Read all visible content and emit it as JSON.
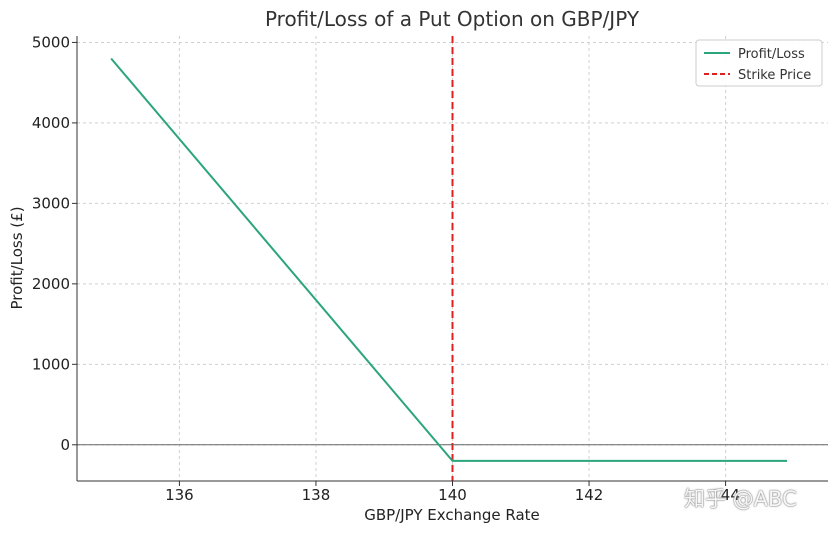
{
  "chart_data": {
    "type": "line",
    "title": "Profit/Loss of a Put Option on GBP/JPY",
    "xlabel": "GBP/JPY Exchange Rate",
    "ylabel": "Profit/Loss (£)",
    "xlim": [
      134.5,
      145.5
    ],
    "ylim": [
      -450,
      5080
    ],
    "xticks": [
      136,
      138,
      140,
      142,
      144
    ],
    "yticks": [
      0,
      1000,
      2000,
      3000,
      4000,
      5000
    ],
    "grid": true,
    "legend_position": "top-right",
    "series": [
      {
        "name": "Profit/Loss",
        "color": "#2ca57a",
        "style": "solid",
        "x": [
          135,
          140,
          144.9
        ],
        "y": [
          4800,
          -200,
          -200
        ]
      }
    ],
    "reference_lines": [
      {
        "name": "Strike Price",
        "orientation": "vertical",
        "x": 140,
        "color": "#e02020",
        "style": "dashed"
      },
      {
        "orientation": "horizontal",
        "y": 0,
        "color": "#666666",
        "style": "solid"
      }
    ]
  },
  "watermark": {
    "text": "知乎 @ABC"
  }
}
